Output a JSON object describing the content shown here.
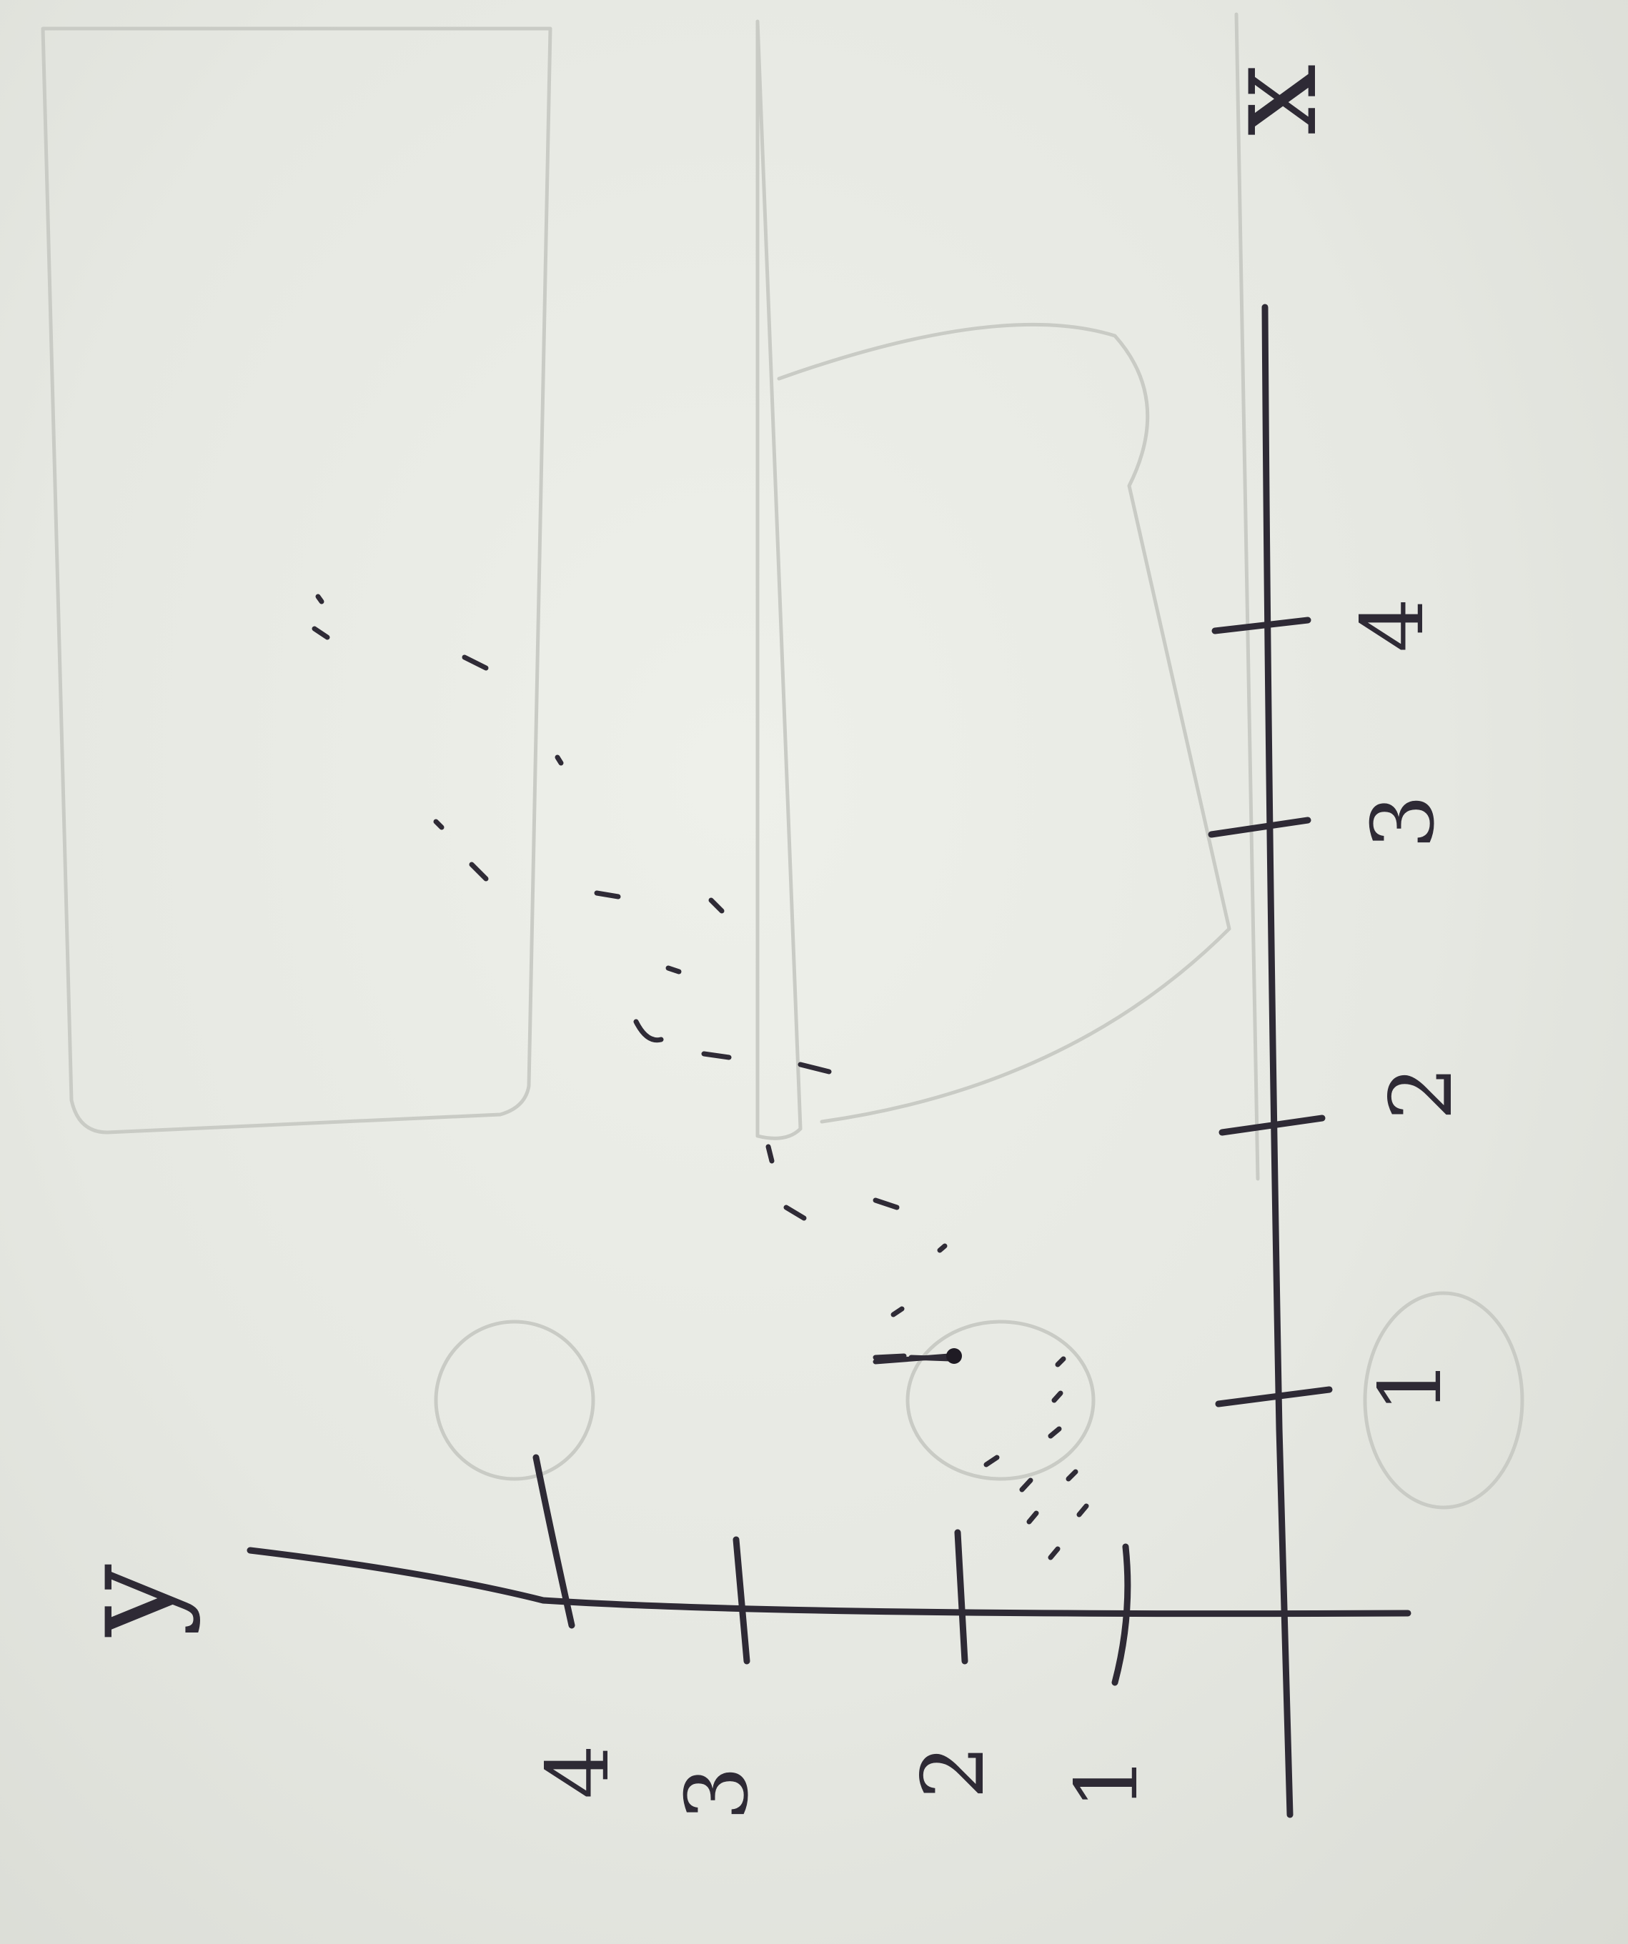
{
  "sketch": {
    "rotation_deg": -90,
    "axis_names": {
      "horizontal": "x",
      "vertical": "y"
    },
    "x_ticks": [
      {
        "value": 1,
        "label": "1"
      },
      {
        "value": 2,
        "label": "2"
      },
      {
        "value": 3,
        "label": "3"
      },
      {
        "value": 4,
        "label": "4"
      }
    ],
    "y_ticks": [
      {
        "value": 1,
        "label": "1"
      },
      {
        "value": 2,
        "label": "2"
      },
      {
        "value": 3,
        "label": "3"
      },
      {
        "value": 4,
        "label": "4"
      }
    ],
    "colors": {
      "ink": "#2e2a35",
      "paper": "#e8eae4",
      "bleed_through": "#c9cbc5"
    }
  }
}
